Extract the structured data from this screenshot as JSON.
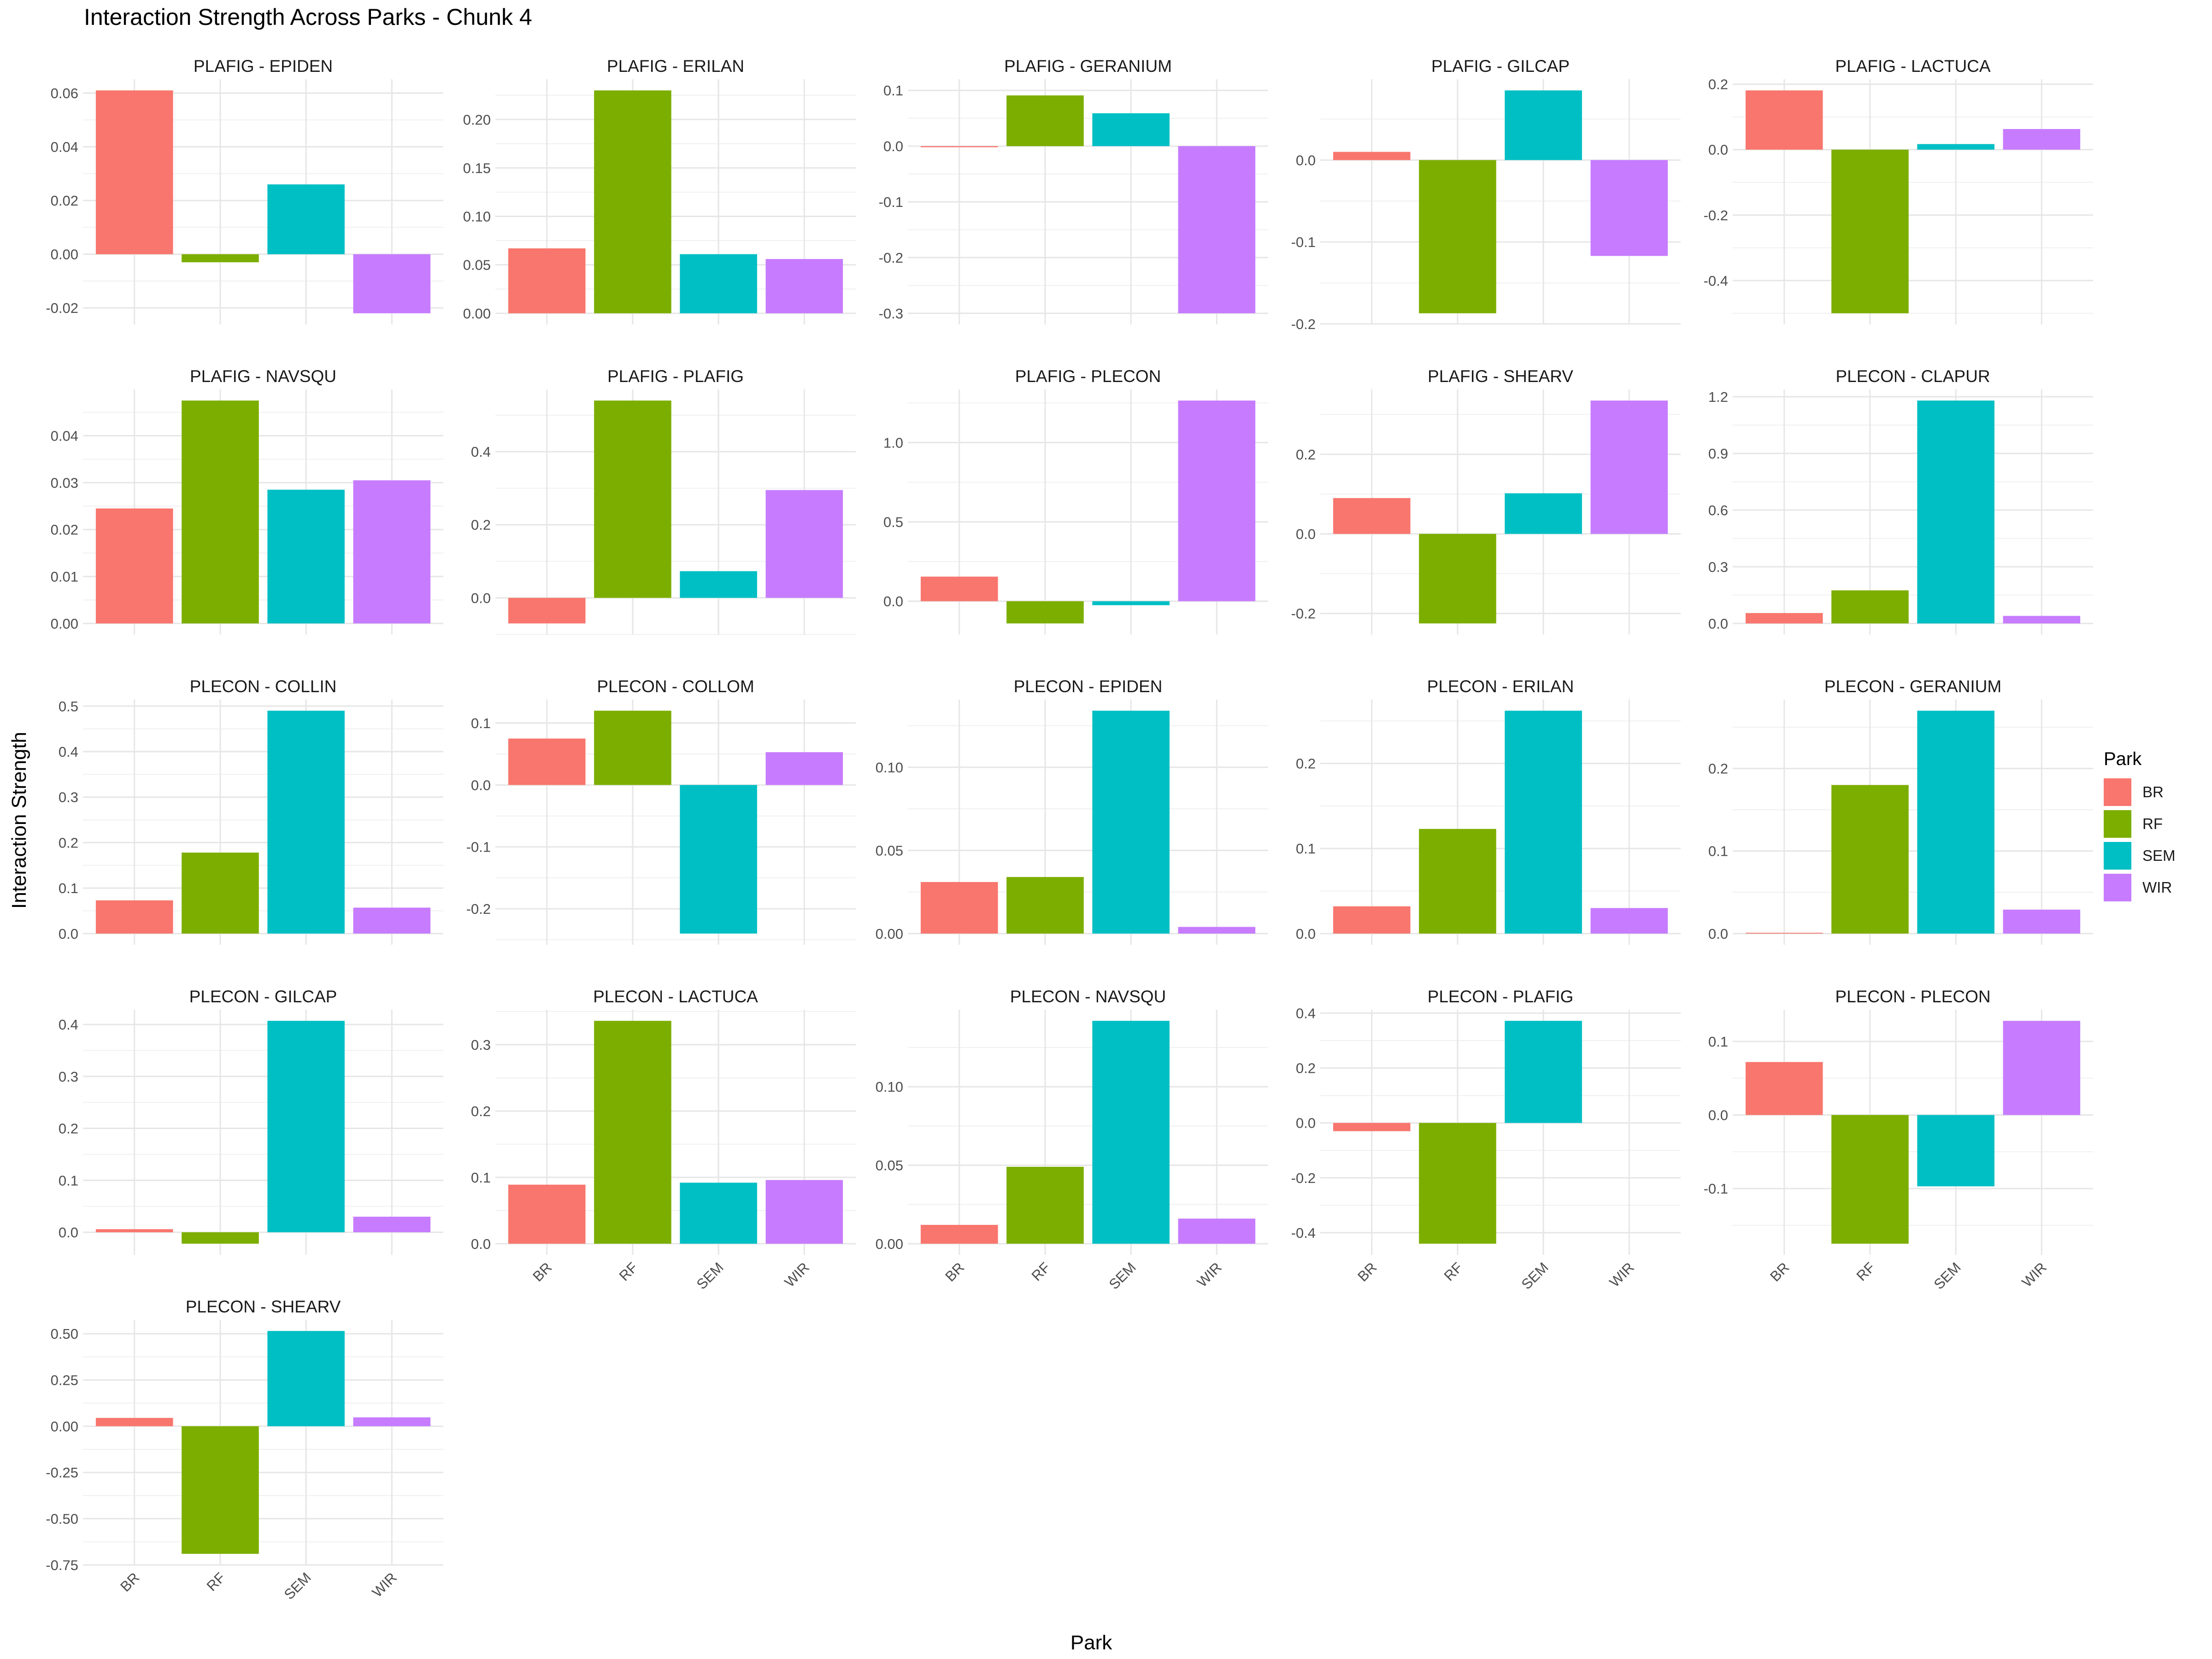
{
  "title": "Interaction Strength Across Parks - Chunk 4",
  "xlabel": "Park",
  "ylabel": "Interaction Strength",
  "legend": {
    "title": "Park",
    "items": [
      {
        "label": "BR",
        "color": "#F8766D"
      },
      {
        "label": "RF",
        "color": "#7CAE00"
      },
      {
        "label": "SEM",
        "color": "#00BFC4"
      },
      {
        "label": "WIR",
        "color": "#C77CFF"
      }
    ]
  },
  "chart_data": {
    "type": "bar",
    "layout": "facet_wrap",
    "facet_columns": 5,
    "categories": [
      "BR",
      "RF",
      "SEM",
      "WIR"
    ],
    "colors": [
      "#F8766D",
      "#7CAE00",
      "#00BFC4",
      "#C77CFF"
    ],
    "grid": true,
    "legend_position": "right",
    "facets": [
      {
        "title": "PLAFIG - EPIDEN",
        "values": [
          0.061,
          -0.003,
          0.026,
          -0.022
        ],
        "ylim": [
          -0.022,
          0.061
        ],
        "ticks": [
          -0.02,
          0,
          0.02,
          0.04,
          0.06
        ],
        "tick_labels": [
          "-0.02",
          "0.00",
          "0.02",
          "0.04",
          "0.06"
        ]
      },
      {
        "title": "PLAFIG - ERILAN",
        "values": [
          0.067,
          0.23,
          0.061,
          0.056
        ],
        "ylim": [
          0,
          0.23
        ],
        "ticks": [
          0,
          0.05,
          0.1,
          0.15,
          0.2
        ],
        "tick_labels": [
          "0.00",
          "0.05",
          "0.10",
          "0.15",
          "0.20"
        ]
      },
      {
        "title": "PLAFIG - GERANIUM",
        "values": [
          -0.002,
          0.091,
          0.059,
          -0.3
        ],
        "ylim": [
          -0.3,
          0.1
        ],
        "ticks": [
          -0.3,
          -0.2,
          -0.1,
          0,
          0.1
        ],
        "tick_labels": [
          "-0.3",
          "-0.2",
          "-0.1",
          "0.0",
          "0.1"
        ]
      },
      {
        "title": "PLAFIG - GILCAP",
        "values": [
          0.01,
          -0.187,
          0.085,
          -0.117
        ],
        "ylim": [
          -0.187,
          0.085
        ],
        "ticks": [
          -0.2,
          -0.1,
          0
        ],
        "tick_labels": [
          "-0.2",
          "-0.1",
          "0.0"
        ]
      },
      {
        "title": "PLAFIG - LACTUCA",
        "values": [
          0.181,
          -0.5,
          0.017,
          0.063
        ],
        "ylim": [
          -0.5,
          0.181
        ],
        "ticks": [
          -0.4,
          -0.2,
          0,
          0.2
        ],
        "tick_labels": [
          "-0.4",
          "-0.2",
          "0.0",
          "0.2"
        ]
      },
      {
        "title": "PLAFIG - NAVSQU",
        "values": [
          0.0245,
          0.0475,
          0.0285,
          0.0305
        ],
        "ylim": [
          0,
          0.0475
        ],
        "ticks": [
          0,
          0.01,
          0.02,
          0.03,
          0.04
        ],
        "tick_labels": [
          "0.00",
          "0.01",
          "0.02",
          "0.03",
          "0.04"
        ]
      },
      {
        "title": "PLAFIG - PLAFIG",
        "values": [
          -0.07,
          0.54,
          0.073,
          0.295
        ],
        "ylim": [
          -0.07,
          0.54
        ],
        "ticks": [
          0,
          0.2,
          0.4
        ],
        "tick_labels": [
          "0.0",
          "0.2",
          "0.4"
        ]
      },
      {
        "title": "PLAFIG - PLECON",
        "values": [
          0.155,
          -0.14,
          -0.025,
          1.265
        ],
        "ylim": [
          -0.14,
          1.265
        ],
        "ticks": [
          0,
          0.5,
          1
        ],
        "tick_labels": [
          "0.0",
          "0.5",
          "1.0"
        ]
      },
      {
        "title": "PLAFIG - SHEARV",
        "values": [
          0.09,
          -0.225,
          0.102,
          0.335
        ],
        "ylim": [
          -0.225,
          0.335
        ],
        "ticks": [
          -0.2,
          0,
          0.2
        ],
        "tick_labels": [
          "-0.2",
          "0.0",
          "0.2"
        ]
      },
      {
        "title": "PLECON - CLAPUR",
        "values": [
          0.055,
          0.175,
          1.18,
          0.04
        ],
        "ylim": [
          0,
          1.18
        ],
        "ticks": [
          0,
          0.3,
          0.6,
          0.9,
          1.2
        ],
        "tick_labels": [
          "0.0",
          "0.3",
          "0.6",
          "0.9",
          "1.2"
        ]
      },
      {
        "title": "PLECON - COLLIN",
        "values": [
          0.073,
          0.178,
          0.49,
          0.057
        ],
        "ylim": [
          0,
          0.49
        ],
        "ticks": [
          0,
          0.1,
          0.2,
          0.3,
          0.4,
          0.5
        ],
        "tick_labels": [
          "0.0",
          "0.1",
          "0.2",
          "0.3",
          "0.4",
          "0.5"
        ]
      },
      {
        "title": "PLECON - COLLOM",
        "values": [
          0.075,
          0.12,
          -0.24,
          0.053
        ],
        "ylim": [
          -0.24,
          0.12
        ],
        "ticks": [
          -0.2,
          -0.1,
          0,
          0.1
        ],
        "tick_labels": [
          "-0.2",
          "-0.1",
          "0.0",
          "0.1"
        ]
      },
      {
        "title": "PLECON - EPIDEN",
        "values": [
          0.031,
          0.034,
          0.134,
          0.004
        ],
        "ylim": [
          0,
          0.134
        ],
        "ticks": [
          0,
          0.05,
          0.1
        ],
        "tick_labels": [
          "0.00",
          "0.05",
          "0.10"
        ]
      },
      {
        "title": "PLECON - ERILAN",
        "values": [
          0.032,
          0.123,
          0.262,
          0.03
        ],
        "ylim": [
          0,
          0.262
        ],
        "ticks": [
          0,
          0.1,
          0.2
        ],
        "tick_labels": [
          "0.0",
          "0.1",
          "0.2"
        ]
      },
      {
        "title": "PLECON - GERANIUM",
        "values": [
          0.001,
          0.18,
          0.27,
          0.029
        ],
        "ylim": [
          0,
          0.27
        ],
        "ticks": [
          0,
          0.1,
          0.2
        ],
        "tick_labels": [
          "0.0",
          "0.1",
          "0.2"
        ]
      },
      {
        "title": "PLECON - GILCAP",
        "values": [
          0.006,
          -0.022,
          0.407,
          0.03
        ],
        "ylim": [
          -0.022,
          0.407
        ],
        "ticks": [
          0,
          0.1,
          0.2,
          0.3,
          0.4
        ],
        "tick_labels": [
          "0.0",
          "0.1",
          "0.2",
          "0.3",
          "0.4"
        ]
      },
      {
        "title": "PLECON - LACTUCA",
        "values": [
          0.089,
          0.336,
          0.092,
          0.096
        ],
        "ylim": [
          0,
          0.336
        ],
        "ticks": [
          0,
          0.1,
          0.2,
          0.3
        ],
        "tick_labels": [
          "0.0",
          "0.1",
          "0.2",
          "0.3"
        ]
      },
      {
        "title": "PLECON - NAVSQU",
        "values": [
          0.012,
          0.049,
          0.142,
          0.016
        ],
        "ylim": [
          0,
          0.142
        ],
        "ticks": [
          0,
          0.05,
          0.1
        ],
        "tick_labels": [
          "0.00",
          "0.05",
          "0.10"
        ]
      },
      {
        "title": "PLECON - PLAFIG",
        "values": [
          -0.03,
          -0.44,
          0.372,
          0
        ],
        "ylim": [
          -0.44,
          0.372
        ],
        "ticks": [
          -0.4,
          -0.2,
          0,
          0.2,
          0.4
        ],
        "tick_labels": [
          "-0.4",
          "-0.2",
          "0.0",
          "0.2",
          "0.4"
        ]
      },
      {
        "title": "PLECON - PLECON",
        "values": [
          0.072,
          -0.175,
          -0.097,
          0.128
        ],
        "ylim": [
          -0.175,
          0.128
        ],
        "ticks": [
          -0.1,
          0,
          0.1
        ],
        "tick_labels": [
          "-0.1",
          "0.0",
          "0.1"
        ]
      },
      {
        "title": "PLECON - SHEARV",
        "values": [
          0.045,
          -0.69,
          0.515,
          0.048
        ],
        "ylim": [
          -0.69,
          0.515
        ],
        "ticks": [
          -0.75,
          -0.5,
          -0.25,
          0,
          0.25,
          0.5
        ],
        "tick_labels": [
          "-0.75",
          "-0.50",
          "-0.25",
          "0.00",
          "0.25",
          "0.50"
        ]
      }
    ]
  }
}
